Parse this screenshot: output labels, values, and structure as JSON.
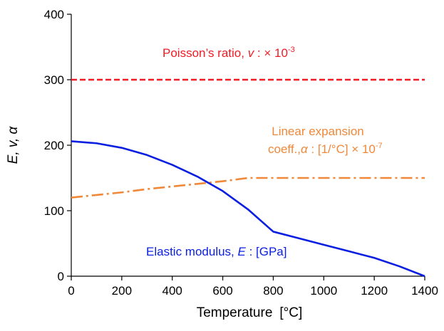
{
  "chart_data": {
    "type": "line",
    "xlabel": "Temperature",
    "xlabel_unit": "[°C]",
    "ylabel": "E, v, α",
    "xlim": [
      0,
      1400
    ],
    "ylim": [
      0,
      400
    ],
    "x_ticks": [
      0,
      200,
      400,
      600,
      800,
      1000,
      1200,
      1400
    ],
    "y_ticks": [
      0,
      100,
      200,
      300,
      400
    ],
    "grid": false,
    "series": [
      {
        "name": "Poisson's ratio",
        "color": "#ee1c25",
        "dash": "dashed",
        "x": [
          0,
          1400
        ],
        "y": [
          300,
          300
        ]
      },
      {
        "name": "Linear expansion coeff.",
        "color": "#f0883a",
        "dash": "dash-dot",
        "x": [
          0,
          100,
          200,
          300,
          400,
          500,
          600,
          700,
          800,
          900,
          1000,
          1100,
          1200,
          1300,
          1400
        ],
        "y": [
          120,
          124,
          128,
          133,
          137,
          141,
          145,
          150,
          150,
          150,
          150,
          150,
          150,
          150,
          150
        ]
      },
      {
        "name": "Elastic modulus",
        "color": "#0a1fe0",
        "dash": "solid",
        "x": [
          0,
          100,
          200,
          300,
          400,
          500,
          600,
          700,
          800,
          900,
          1000,
          1100,
          1200,
          1300,
          1400
        ],
        "y": [
          206,
          203,
          196,
          185,
          170,
          152,
          130,
          102,
          68,
          58,
          48,
          38,
          28,
          15,
          0
        ]
      }
    ],
    "annotations": {
      "poisson": {
        "text": "Poisson’s ratio, ",
        "var": "v",
        "suffix": " :  × 10",
        "exp": "-3"
      },
      "expansion_line1": "Linear expansion",
      "expansion_line2": {
        "text": "coeff.,",
        "var": "α",
        "suffix": " : [1/°C] × 10",
        "exp": "-7"
      },
      "modulus": {
        "text": "Elastic modulus, ",
        "var": "E",
        "suffix": " : [GPa]"
      }
    }
  }
}
